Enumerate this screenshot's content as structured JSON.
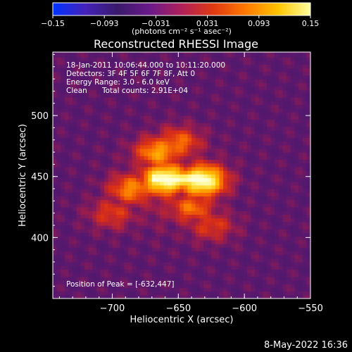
{
  "colorbar": {
    "ticks": [
      "−0.15",
      "−0.093",
      "−0.031",
      "0.031",
      "0.093",
      "0.15"
    ],
    "units": "(photons cm⁻² s⁻¹ asec⁻²)",
    "gradient": [
      "#0033ff",
      "#4422bb",
      "#3a1a6a",
      "#6a1a8a",
      "#b0205a",
      "#e03a10",
      "#ff7a00",
      "#ffc400",
      "#ffffa0"
    ]
  },
  "chart_data": {
    "type": "heatmap",
    "title": "Reconstructed RHESSI Image",
    "xlabel": "Heliocentric X (arcsec)",
    "ylabel": "Heliocentric Y (arcsec)",
    "xlim": [
      -745,
      -550
    ],
    "ylim": [
      350,
      552
    ],
    "x_ticks": [
      {
        "value": -700,
        "label": "−700"
      },
      {
        "value": -650,
        "label": "−650"
      },
      {
        "value": -600,
        "label": "−600"
      },
      {
        "value": -550,
        "label": "−550"
      }
    ],
    "y_ticks": [
      {
        "value": 400,
        "label": "400"
      },
      {
        "value": 450,
        "label": "450"
      },
      {
        "value": 500,
        "label": "500"
      }
    ],
    "color_range": [
      -0.15,
      0.15
    ],
    "peak": {
      "x": -632,
      "y": 447
    },
    "source_intensities": [
      {
        "x": -660,
        "y": 448,
        "intensity": 0.15
      },
      {
        "x": -632,
        "y": 447,
        "intensity": 0.15
      },
      {
        "x": -665,
        "y": 470,
        "intensity": 0.09
      },
      {
        "x": -650,
        "y": 478,
        "intensity": 0.07
      },
      {
        "x": -685,
        "y": 440,
        "intensity": 0.08
      },
      {
        "x": -640,
        "y": 425,
        "intensity": 0.07
      },
      {
        "x": -625,
        "y": 410,
        "intensity": 0.05
      },
      {
        "x": -700,
        "y": 420,
        "intensity": 0.05
      }
    ]
  },
  "annotations": {
    "time_range": "18-Jan-2011 10:06:44.000 to 10:11:20.000",
    "detectors": "Detectors: 3F 4F 5F 6F 7F 8F, Att 0",
    "energy_range": "Energy Range: 3.0 - 6.0 keV",
    "clean_label": "Clean",
    "total_counts": "Total counts: 2.91E+04",
    "peak_position": "Position of Peak = [-632,447]"
  },
  "footer": {
    "date": "8-May-2022 16:36"
  }
}
